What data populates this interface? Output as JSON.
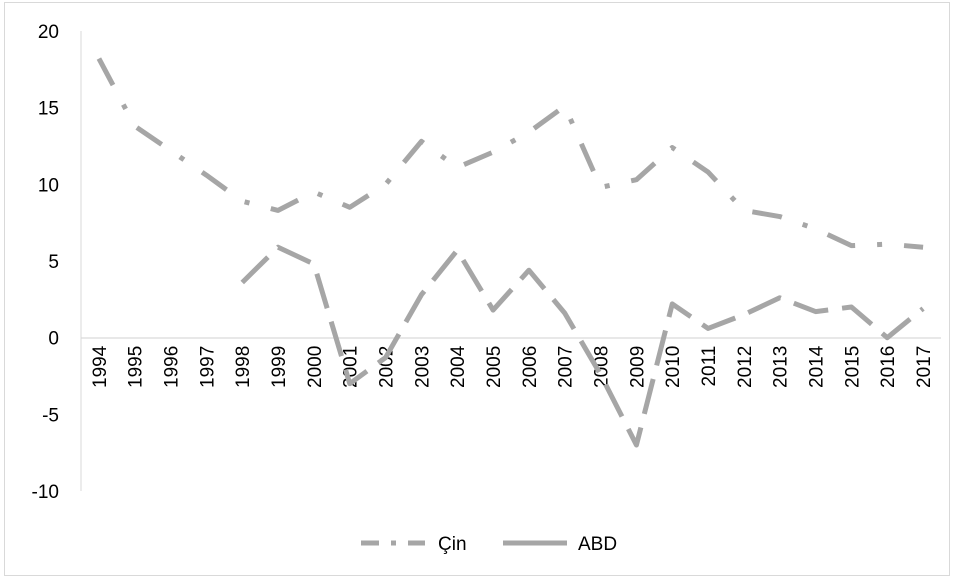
{
  "chart_data": {
    "type": "line",
    "title": "",
    "xlabel": "",
    "ylabel": "",
    "categories": [
      "1994",
      "1995",
      "1996",
      "1997",
      "1998",
      "1999",
      "2000",
      "2001",
      "2002",
      "2003",
      "2004",
      "2005",
      "2006",
      "2007",
      "2008",
      "2009",
      "2010",
      "2011",
      "2012",
      "2013",
      "2014",
      "2015",
      "2016",
      "2017"
    ],
    "ylim": [
      -10,
      20
    ],
    "yticks": [
      -10,
      -5,
      0,
      5,
      10,
      15,
      20
    ],
    "grid": false,
    "legend_position": "bottom",
    "series": [
      {
        "name": "Çin",
        "color": "#a6a6a6",
        "dash": "dash-dot",
        "values": [
          18.2,
          13.8,
          12.2,
          10.6,
          8.9,
          8.3,
          9.5,
          8.5,
          10.0,
          12.8,
          11.1,
          12.1,
          13.4,
          15.1,
          9.8,
          10.3,
          12.4,
          10.8,
          8.3,
          7.9,
          7.1,
          6.0,
          6.1,
          5.9
        ]
      },
      {
        "name": "ABD",
        "color": "#a6a6a6",
        "dash": "long-dash",
        "values": [
          null,
          null,
          null,
          null,
          3.6,
          5.9,
          4.8,
          -3.0,
          -1.3,
          2.8,
          5.7,
          1.8,
          4.4,
          1.6,
          -2.4,
          -7.0,
          2.2,
          0.6,
          1.5,
          2.6,
          1.7,
          2.0,
          0.0,
          1.9
        ]
      }
    ]
  }
}
